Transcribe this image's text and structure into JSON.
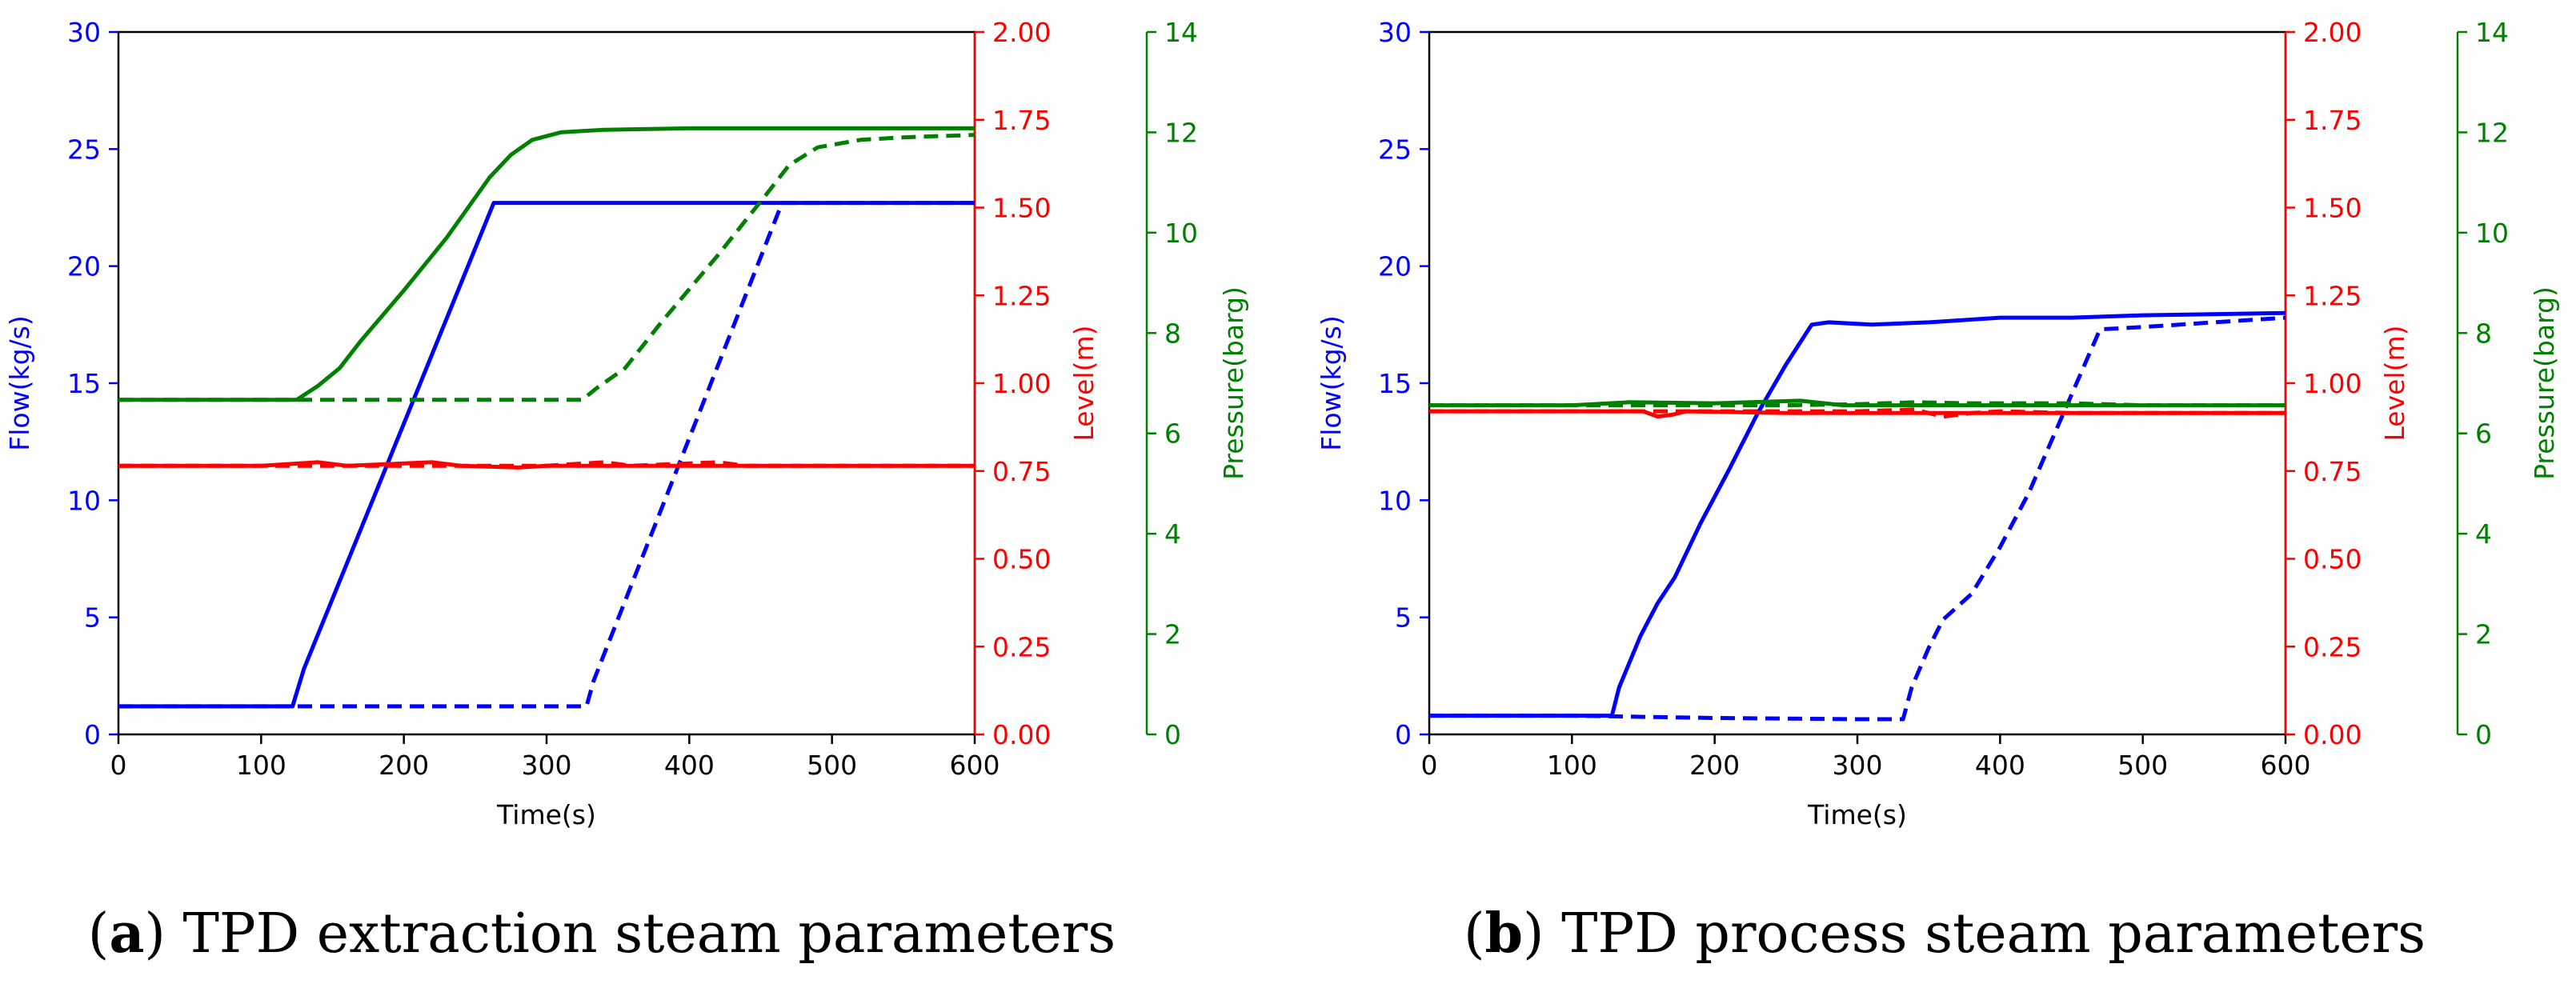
{
  "chart_data": [
    {
      "type": "line",
      "panel_label": "a",
      "caption": "TPD extraction steam parameters",
      "xlabel": "Time(s)",
      "xlim": [
        0,
        600
      ],
      "xticks": [
        0,
        100,
        200,
        300,
        400,
        500,
        600
      ],
      "axes": [
        {
          "id": "flow",
          "ylabel": "Flow(kg/s)",
          "ylim": [
            0,
            30
          ],
          "ticks": [
            0,
            5,
            10,
            15,
            20,
            25,
            30
          ],
          "decimals": 0,
          "color": "#0000ff"
        },
        {
          "id": "level",
          "ylabel": "Level(m)",
          "ylim": [
            0,
            2
          ],
          "ticks": [
            0,
            0.25,
            0.5,
            0.75,
            1.0,
            1.25,
            1.5,
            1.75,
            2.0
          ],
          "decimals": 2,
          "color": "#ff0000"
        },
        {
          "id": "pressure",
          "ylabel": "Pressure(barg)",
          "ylim": [
            0,
            14
          ],
          "ticks": [
            0,
            2,
            4,
            6,
            8,
            10,
            12,
            14
          ],
          "decimals": 0,
          "color": "#008000"
        }
      ],
      "series": [
        {
          "name": "flow-solid",
          "axis": "flow",
          "color": "#0000ff",
          "dash": false,
          "x": [
            0,
            122,
            125,
            130,
            263,
            300,
            400,
            500,
            600
          ],
          "y": [
            1.2,
            1.2,
            1.8,
            2.8,
            22.7,
            22.7,
            22.7,
            22.7,
            22.7
          ]
        },
        {
          "name": "flow-dashed",
          "axis": "flow",
          "color": "#0000ff",
          "dash": true,
          "x": [
            0,
            328,
            333,
            465,
            500,
            600
          ],
          "y": [
            1.2,
            1.2,
            2.3,
            22.7,
            22.7,
            22.7
          ]
        },
        {
          "name": "level-solid",
          "axis": "level",
          "color": "#ff0000",
          "dash": false,
          "x": [
            0,
            100,
            140,
            160,
            220,
            240,
            280,
            300,
            400,
            500,
            600
          ],
          "y": [
            0.765,
            0.765,
            0.775,
            0.765,
            0.775,
            0.765,
            0.76,
            0.765,
            0.765,
            0.765,
            0.765
          ]
        },
        {
          "name": "level-dashed",
          "axis": "level",
          "color": "#ff0000",
          "dash": true,
          "x": [
            0,
            300,
            340,
            360,
            420,
            440,
            480,
            520,
            600
          ],
          "y": [
            0.765,
            0.765,
            0.775,
            0.765,
            0.775,
            0.765,
            0.765,
            0.765,
            0.765
          ]
        },
        {
          "name": "pressure-solid",
          "axis": "pressure",
          "color": "#008000",
          "dash": false,
          "x": [
            0,
            125,
            140,
            155,
            170,
            200,
            230,
            260,
            275,
            290,
            310,
            340,
            400,
            600
          ],
          "y": [
            6.67,
            6.67,
            6.95,
            7.3,
            7.85,
            8.85,
            9.9,
            11.1,
            11.55,
            11.85,
            12.0,
            12.05,
            12.08,
            12.08
          ]
        },
        {
          "name": "pressure-dashed",
          "axis": "pressure",
          "color": "#008000",
          "dash": true,
          "x": [
            0,
            325,
            335,
            355,
            380,
            420,
            455,
            470,
            490,
            520,
            550,
            600
          ],
          "y": [
            6.67,
            6.67,
            6.9,
            7.3,
            8.2,
            9.55,
            10.8,
            11.35,
            11.7,
            11.85,
            11.9,
            11.95
          ]
        }
      ]
    },
    {
      "type": "line",
      "panel_label": "b",
      "caption": "TPD process steam parameters",
      "xlabel": "Time(s)",
      "xlim": [
        0,
        600
      ],
      "xticks": [
        0,
        100,
        200,
        300,
        400,
        500,
        600
      ],
      "axes": [
        {
          "id": "flow",
          "ylabel": "Flow(kg/s)",
          "ylim": [
            0,
            30
          ],
          "ticks": [
            0,
            5,
            10,
            15,
            20,
            25,
            30
          ],
          "decimals": 0,
          "color": "#0000ff"
        },
        {
          "id": "level",
          "ylabel": "Level(m)",
          "ylim": [
            0,
            2
          ],
          "ticks": [
            0,
            0.25,
            0.5,
            0.75,
            1.0,
            1.25,
            1.5,
            1.75,
            2.0
          ],
          "decimals": 2,
          "color": "#ff0000"
        },
        {
          "id": "pressure",
          "ylabel": "Pressure(barg)",
          "ylim": [
            0,
            14
          ],
          "ticks": [
            0,
            2,
            4,
            6,
            8,
            10,
            12,
            14
          ],
          "decimals": 0,
          "color": "#008000"
        }
      ],
      "series": [
        {
          "name": "flow-solid",
          "axis": "flow",
          "color": "#0000ff",
          "dash": false,
          "x": [
            0,
            128,
            133,
            148,
            160,
            172,
            190,
            210,
            230,
            250,
            268,
            280,
            310,
            350,
            400,
            450,
            500,
            600
          ],
          "y": [
            0.8,
            0.8,
            2.0,
            4.2,
            5.6,
            6.7,
            9.0,
            11.3,
            13.7,
            15.8,
            17.5,
            17.6,
            17.5,
            17.6,
            17.8,
            17.8,
            17.9,
            18.0
          ]
        },
        {
          "name": "flow-dashed",
          "axis": "flow",
          "color": "#0000ff",
          "dash": true,
          "x": [
            0,
            100,
            200,
            300,
            332,
            338,
            350,
            360,
            380,
            400,
            420,
            445,
            470,
            500,
            550,
            600
          ],
          "y": [
            0.8,
            0.8,
            0.7,
            0.65,
            0.65,
            2.0,
            3.7,
            4.9,
            6.0,
            8.0,
            10.3,
            13.8,
            17.3,
            17.4,
            17.6,
            17.8
          ]
        },
        {
          "name": "level-solid",
          "axis": "level",
          "color": "#ff0000",
          "dash": false,
          "x": [
            0,
            150,
            160,
            170,
            180,
            250,
            350,
            400,
            450,
            600
          ],
          "y": [
            0.92,
            0.92,
            0.905,
            0.91,
            0.92,
            0.915,
            0.915,
            0.915,
            0.915,
            0.915
          ]
        },
        {
          "name": "level-dashed",
          "axis": "level",
          "color": "#ff0000",
          "dash": true,
          "x": [
            0,
            300,
            340,
            360,
            380,
            400,
            450,
            600
          ],
          "y": [
            0.92,
            0.92,
            0.925,
            0.905,
            0.915,
            0.92,
            0.915,
            0.915
          ]
        },
        {
          "name": "pressure-solid",
          "axis": "pressure",
          "color": "#008000",
          "dash": false,
          "x": [
            0,
            100,
            140,
            200,
            260,
            290,
            320,
            400,
            500,
            600
          ],
          "y": [
            6.56,
            6.56,
            6.62,
            6.6,
            6.65,
            6.56,
            6.56,
            6.56,
            6.56,
            6.56
          ]
        },
        {
          "name": "pressure-dashed",
          "axis": "pressure",
          "color": "#008000",
          "dash": true,
          "x": [
            0,
            250,
            300,
            340,
            380,
            450,
            500,
            600
          ],
          "y": [
            6.56,
            6.56,
            6.58,
            6.62,
            6.6,
            6.6,
            6.56,
            6.56
          ]
        }
      ]
    }
  ]
}
